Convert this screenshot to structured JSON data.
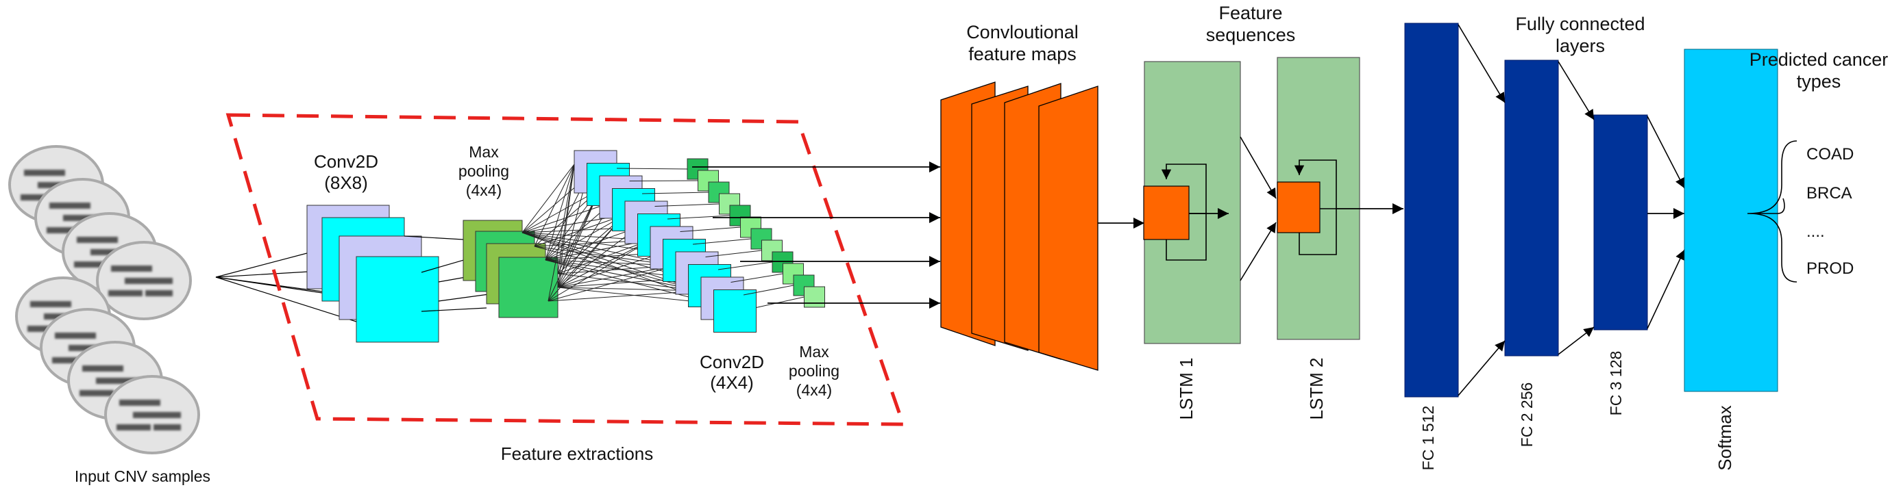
{
  "labels": {
    "input_samples": "Input CNV samples",
    "conv2d_1": [
      "Conv2D",
      "(8X8)"
    ],
    "maxpool_1": [
      "Max",
      "pooling",
      "(4x4)"
    ],
    "conv2d_2": [
      "Conv2D",
      "(4X4)"
    ],
    "maxpool_2": [
      "Max",
      "pooling",
      "(4x4)"
    ],
    "feature_extractions": "Feature extractions",
    "conv_feature_maps": [
      "Convloutional",
      "feature maps"
    ],
    "feature_sequences": [
      "Feature",
      "sequences"
    ],
    "lstm1": "LSTM 1",
    "lstm2": "LSTM 2",
    "fully_connected": [
      "Fully connected",
      "layers"
    ],
    "fc1": "FC 1 512",
    "fc2": "FC 2 256",
    "fc3": "FC 3 128",
    "softmax": "Softmax",
    "predicted": [
      "Predicted cancer",
      "types"
    ],
    "classes": [
      "COAD",
      "BRCA",
      "....",
      "PROD"
    ]
  },
  "colors": {
    "dashed_border": "#e8231f",
    "conv_back": "#c9c9f7",
    "conv_front": "#00ffff",
    "pool_green_1": "#8cc24a",
    "pool_green_2": "#33cc66",
    "small_green": "#22bb55",
    "small_green_light": "#88ee88",
    "feature_map": "#ff6600",
    "lstm_box": "#99cc99",
    "lstm_cell": "#ff6600",
    "fc": "#003399",
    "softmax": "#00ccff"
  },
  "icons": {
    "input_samples": "blurred-cnv-sample-disc",
    "dashed_region": "feature-extraction-region"
  }
}
